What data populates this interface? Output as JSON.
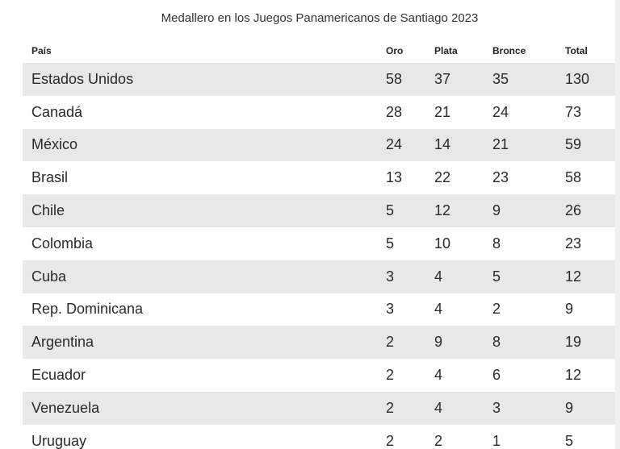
{
  "chart_data": {
    "type": "table",
    "title": "Medallero en los Juegos Panamericanos de Santiago 2023",
    "columns": [
      "País",
      "Oro",
      "Plata",
      "Bronce",
      "Total"
    ],
    "rows": [
      [
        "Estados Unidos",
        "58",
        "37",
        "35",
        "130"
      ],
      [
        "Canadá",
        "28",
        "21",
        "24",
        "73"
      ],
      [
        "México",
        "24",
        "14",
        "21",
        "59"
      ],
      [
        "Brasil",
        "13",
        "22",
        "23",
        "58"
      ],
      [
        "Chile",
        "5",
        "12",
        "9",
        "26"
      ],
      [
        "Colombia",
        "5",
        "10",
        "8",
        "23"
      ],
      [
        "Cuba",
        "3",
        "4",
        "5",
        "12"
      ],
      [
        "Rep. Dominicana",
        "3",
        "4",
        "2",
        "9"
      ],
      [
        "Argentina",
        "2",
        "9",
        "8",
        "19"
      ],
      [
        "Ecuador",
        "2",
        "4",
        "6",
        "12"
      ],
      [
        "Venezuela",
        "2",
        "4",
        "3",
        "9"
      ],
      [
        "Uruguay",
        "2",
        "2",
        "1",
        "5"
      ]
    ]
  },
  "colors": {
    "row_shade": "#e8e8e8",
    "background": "#ffffff",
    "text": "#222222"
  }
}
